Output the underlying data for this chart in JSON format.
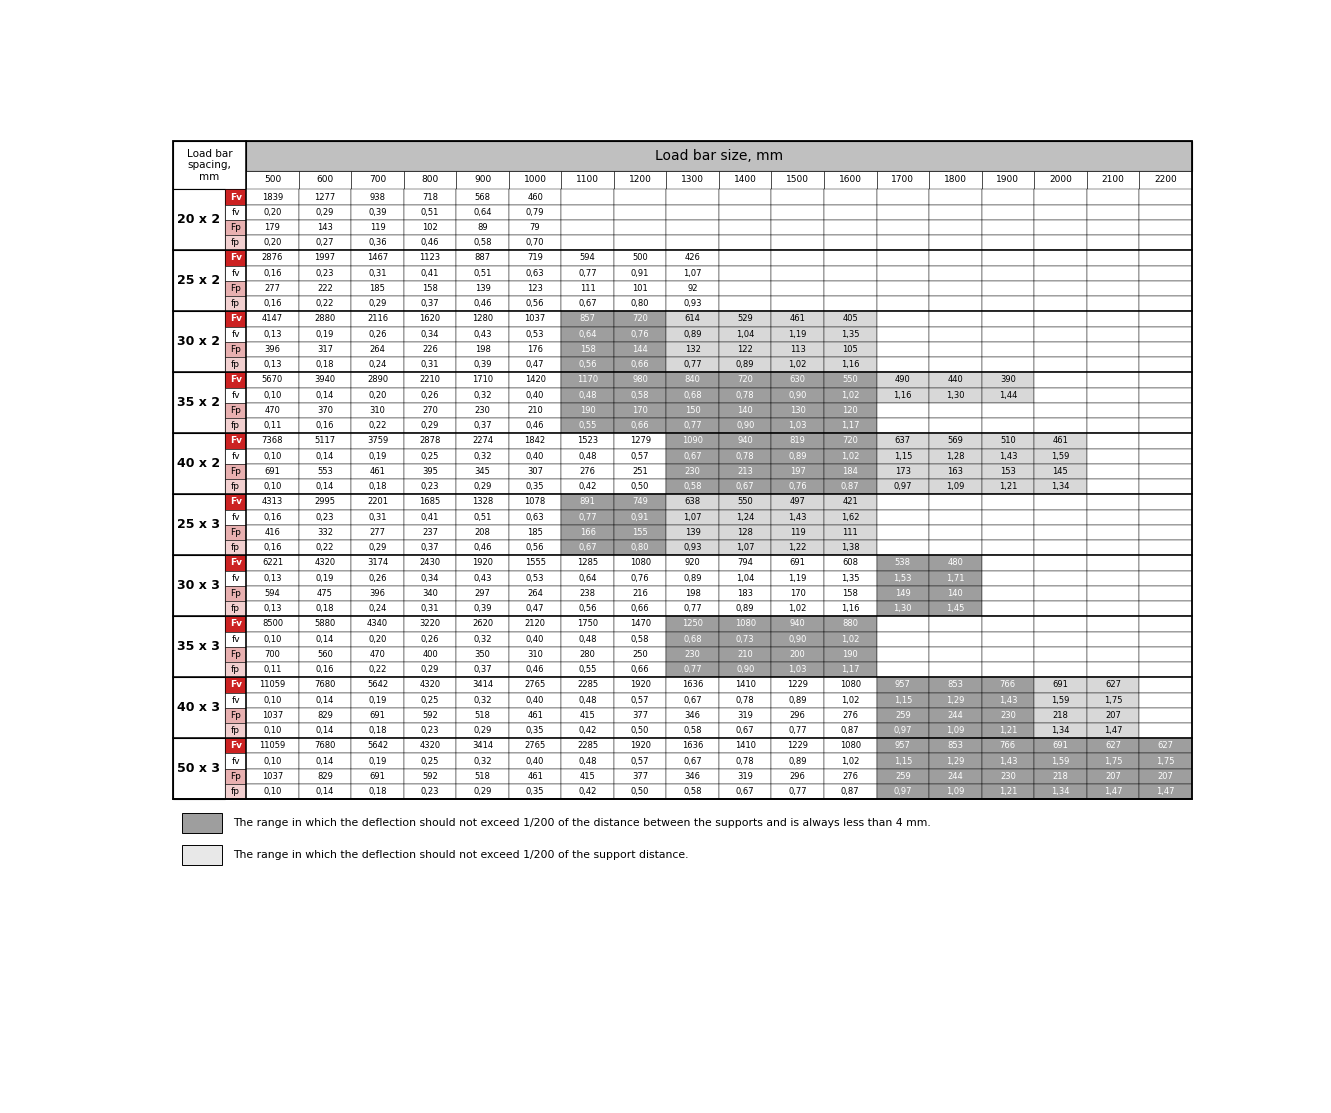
{
  "title": "Load bar size, mm",
  "col_headers": [
    "500",
    "600",
    "700",
    "800",
    "900",
    "1000",
    "1100",
    "1200",
    "1300",
    "1400",
    "1500",
    "1600",
    "1700",
    "1800",
    "1900",
    "2000",
    "2100",
    "2200"
  ],
  "row_groups": [
    {
      "label": "20 x 2",
      "rows": [
        {
          "type": "Fv",
          "values": [
            "1839",
            "1277",
            "938",
            "718",
            "568",
            "460",
            "",
            "",
            "",
            "",
            "",
            "",
            "",
            "",
            "",
            "",
            "",
            ""
          ]
        },
        {
          "type": "fv",
          "values": [
            "0,20",
            "0,29",
            "0,39",
            "0,51",
            "0,64",
            "0,79",
            "",
            "",
            "",
            "",
            "",
            "",
            "",
            "",
            "",
            "",
            "",
            ""
          ]
        },
        {
          "type": "Fp",
          "values": [
            "179",
            "143",
            "119",
            "102",
            "89",
            "79",
            "",
            "",
            "",
            "",
            "",
            "",
            "",
            "",
            "",
            "",
            "",
            ""
          ]
        },
        {
          "type": "fp",
          "values": [
            "0,20",
            "0,27",
            "0,36",
            "0,46",
            "0,58",
            "0,70",
            "",
            "",
            "",
            "",
            "",
            "",
            "",
            "",
            "",
            "",
            "",
            ""
          ]
        }
      ]
    },
    {
      "label": "25 x 2",
      "rows": [
        {
          "type": "Fv",
          "values": [
            "2876",
            "1997",
            "1467",
            "1123",
            "887",
            "719",
            "594",
            "500",
            "426",
            "",
            "",
            "",
            "",
            "",
            "",
            "",
            "",
            ""
          ]
        },
        {
          "type": "fv",
          "values": [
            "0,16",
            "0,23",
            "0,31",
            "0,41",
            "0,51",
            "0,63",
            "0,77",
            "0,91",
            "1,07",
            "",
            "",
            "",
            "",
            "",
            "",
            "",
            "",
            ""
          ]
        },
        {
          "type": "Fp",
          "values": [
            "277",
            "222",
            "185",
            "158",
            "139",
            "123",
            "111",
            "101",
            "92",
            "",
            "",
            "",
            "",
            "",
            "",
            "",
            "",
            ""
          ]
        },
        {
          "type": "fp",
          "values": [
            "0,16",
            "0,22",
            "0,29",
            "0,37",
            "0,46",
            "0,56",
            "0,67",
            "0,80",
            "0,93",
            "",
            "",
            "",
            "",
            "",
            "",
            "",
            "",
            ""
          ]
        }
      ]
    },
    {
      "label": "30 x 2",
      "rows": [
        {
          "type": "Fv",
          "values": [
            "4147",
            "2880",
            "2116",
            "1620",
            "1280",
            "1037",
            "857",
            "720",
            "614",
            "529",
            "461",
            "405",
            "",
            "",
            "",
            "",
            "",
            ""
          ]
        },
        {
          "type": "fv",
          "values": [
            "0,13",
            "0,19",
            "0,26",
            "0,34",
            "0,43",
            "0,53",
            "0,64",
            "0,76",
            "0,89",
            "1,04",
            "1,19",
            "1,35",
            "",
            "",
            "",
            "",
            "",
            ""
          ]
        },
        {
          "type": "Fp",
          "values": [
            "396",
            "317",
            "264",
            "226",
            "198",
            "176",
            "158",
            "144",
            "132",
            "122",
            "113",
            "105",
            "",
            "",
            "",
            "",
            "",
            ""
          ]
        },
        {
          "type": "fp",
          "values": [
            "0,13",
            "0,18",
            "0,24",
            "0,31",
            "0,39",
            "0,47",
            "0,56",
            "0,66",
            "0,77",
            "0,89",
            "1,02",
            "1,16",
            "",
            "",
            "",
            "",
            "",
            ""
          ]
        }
      ]
    },
    {
      "label": "35 x 2",
      "rows": [
        {
          "type": "Fv",
          "values": [
            "5670",
            "3940",
            "2890",
            "2210",
            "1710",
            "1420",
            "1170",
            "980",
            "840",
            "720",
            "630",
            "550",
            "490",
            "440",
            "390",
            "",
            "",
            ""
          ]
        },
        {
          "type": "fv",
          "values": [
            "0,10",
            "0,14",
            "0,20",
            "0,26",
            "0,32",
            "0,40",
            "0,48",
            "0,58",
            "0,68",
            "0,78",
            "0,90",
            "1,02",
            "1,16",
            "1,30",
            "1,44",
            "",
            "",
            ""
          ]
        },
        {
          "type": "Fp",
          "values": [
            "470",
            "370",
            "310",
            "270",
            "230",
            "210",
            "190",
            "170",
            "150",
            "140",
            "130",
            "120",
            "",
            "",
            "",
            "",
            "",
            ""
          ]
        },
        {
          "type": "fp",
          "values": [
            "0,11",
            "0,16",
            "0,22",
            "0,29",
            "0,37",
            "0,46",
            "0,55",
            "0,66",
            "0,77",
            "0,90",
            "1,03",
            "1,17",
            "",
            "",
            "",
            "",
            "",
            ""
          ]
        }
      ]
    },
    {
      "label": "40 x 2",
      "rows": [
        {
          "type": "Fv",
          "values": [
            "7368",
            "5117",
            "3759",
            "2878",
            "2274",
            "1842",
            "1523",
            "1279",
            "1090",
            "940",
            "819",
            "720",
            "637",
            "569",
            "510",
            "461",
            "",
            ""
          ]
        },
        {
          "type": "fv",
          "values": [
            "0,10",
            "0,14",
            "0,19",
            "0,25",
            "0,32",
            "0,40",
            "0,48",
            "0,57",
            "0,67",
            "0,78",
            "0,89",
            "1,02",
            "1,15",
            "1,28",
            "1,43",
            "1,59",
            "",
            ""
          ]
        },
        {
          "type": "Fp",
          "values": [
            "691",
            "553",
            "461",
            "395",
            "345",
            "307",
            "276",
            "251",
            "230",
            "213",
            "197",
            "184",
            "173",
            "163",
            "153",
            "145",
            "",
            ""
          ]
        },
        {
          "type": "fp",
          "values": [
            "0,10",
            "0,14",
            "0,18",
            "0,23",
            "0,29",
            "0,35",
            "0,42",
            "0,50",
            "0,58",
            "0,67",
            "0,76",
            "0,87",
            "0,97",
            "1,09",
            "1,21",
            "1,34",
            "",
            ""
          ]
        }
      ]
    },
    {
      "label": "25 x 3",
      "rows": [
        {
          "type": "Fv",
          "values": [
            "4313",
            "2995",
            "2201",
            "1685",
            "1328",
            "1078",
            "891",
            "749",
            "638",
            "550",
            "497",
            "421",
            "",
            "",
            "",
            "",
            "",
            ""
          ]
        },
        {
          "type": "fv",
          "values": [
            "0,16",
            "0,23",
            "0,31",
            "0,41",
            "0,51",
            "0,63",
            "0,77",
            "0,91",
            "1,07",
            "1,24",
            "1,43",
            "1,62",
            "",
            "",
            "",
            "",
            "",
            ""
          ]
        },
        {
          "type": "Fp",
          "values": [
            "416",
            "332",
            "277",
            "237",
            "208",
            "185",
            "166",
            "155",
            "139",
            "128",
            "119",
            "111",
            "",
            "",
            "",
            "",
            "",
            ""
          ]
        },
        {
          "type": "fp",
          "values": [
            "0,16",
            "0,22",
            "0,29",
            "0,37",
            "0,46",
            "0,56",
            "0,67",
            "0,80",
            "0,93",
            "1,07",
            "1,22",
            "1,38",
            "",
            "",
            "",
            "",
            "",
            ""
          ]
        }
      ]
    },
    {
      "label": "30 x 3",
      "rows": [
        {
          "type": "Fv",
          "values": [
            "6221",
            "4320",
            "3174",
            "2430",
            "1920",
            "1555",
            "1285",
            "1080",
            "920",
            "794",
            "691",
            "608",
            "538",
            "480",
            "",
            "",
            "",
            ""
          ]
        },
        {
          "type": "fv",
          "values": [
            "0,13",
            "0,19",
            "0,26",
            "0,34",
            "0,43",
            "0,53",
            "0,64",
            "0,76",
            "0,89",
            "1,04",
            "1,19",
            "1,35",
            "1,53",
            "1,71",
            "",
            "",
            "",
            ""
          ]
        },
        {
          "type": "Fp",
          "values": [
            "594",
            "475",
            "396",
            "340",
            "297",
            "264",
            "238",
            "216",
            "198",
            "183",
            "170",
            "158",
            "149",
            "140",
            "",
            "",
            "",
            ""
          ]
        },
        {
          "type": "fp",
          "values": [
            "0,13",
            "0,18",
            "0,24",
            "0,31",
            "0,39",
            "0,47",
            "0,56",
            "0,66",
            "0,77",
            "0,89",
            "1,02",
            "1,16",
            "1,30",
            "1,45",
            "",
            "",
            "",
            ""
          ]
        }
      ]
    },
    {
      "label": "35 x 3",
      "rows": [
        {
          "type": "Fv",
          "values": [
            "8500",
            "5880",
            "4340",
            "3220",
            "2620",
            "2120",
            "1750",
            "1470",
            "1250",
            "1080",
            "940",
            "880",
            "",
            "",
            "",
            "",
            "",
            ""
          ]
        },
        {
          "type": "fv",
          "values": [
            "0,10",
            "0,14",
            "0,20",
            "0,26",
            "0,32",
            "0,40",
            "0,48",
            "0,58",
            "0,68",
            "0,73",
            "0,90",
            "1,02",
            "",
            "",
            "",
            "",
            "",
            ""
          ]
        },
        {
          "type": "Fp",
          "values": [
            "700",
            "560",
            "470",
            "400",
            "350",
            "310",
            "280",
            "250",
            "230",
            "210",
            "200",
            "190",
            "",
            "",
            "",
            "",
            "",
            ""
          ]
        },
        {
          "type": "fp",
          "values": [
            "0,11",
            "0,16",
            "0,22",
            "0,29",
            "0,37",
            "0,46",
            "0,55",
            "0,66",
            "0,77",
            "0,90",
            "1,03",
            "1,17",
            "",
            "",
            "",
            "",
            "",
            ""
          ]
        }
      ]
    },
    {
      "label": "40 x 3",
      "rows": [
        {
          "type": "Fv",
          "values": [
            "11059",
            "7680",
            "5642",
            "4320",
            "3414",
            "2765",
            "2285",
            "1920",
            "1636",
            "1410",
            "1229",
            "1080",
            "957",
            "853",
            "766",
            "691",
            "627",
            ""
          ]
        },
        {
          "type": "fv",
          "values": [
            "0,10",
            "0,14",
            "0,19",
            "0,25",
            "0,32",
            "0,40",
            "0,48",
            "0,57",
            "0,67",
            "0,78",
            "0,89",
            "1,02",
            "1,15",
            "1,29",
            "1,43",
            "1,59",
            "1,75",
            ""
          ]
        },
        {
          "type": "Fp",
          "values": [
            "1037",
            "829",
            "691",
            "592",
            "518",
            "461",
            "415",
            "377",
            "346",
            "319",
            "296",
            "276",
            "259",
            "244",
            "230",
            "218",
            "207",
            ""
          ]
        },
        {
          "type": "fp",
          "values": [
            "0,10",
            "0,14",
            "0,18",
            "0,23",
            "0,29",
            "0,35",
            "0,42",
            "0,50",
            "0,58",
            "0,67",
            "0,77",
            "0,87",
            "0,97",
            "1,09",
            "1,21",
            "1,34",
            "1,47",
            ""
          ]
        }
      ]
    },
    {
      "label": "50 x 3",
      "rows": [
        {
          "type": "Fv",
          "values": [
            "11059",
            "7680",
            "5642",
            "4320",
            "3414",
            "2765",
            "2285",
            "1920",
            "1636",
            "1410",
            "1229",
            "1080",
            "957",
            "853",
            "766",
            "691",
            "627",
            "627"
          ]
        },
        {
          "type": "fv",
          "values": [
            "0,10",
            "0,14",
            "0,19",
            "0,25",
            "0,32",
            "0,40",
            "0,48",
            "0,57",
            "0,67",
            "0,78",
            "0,89",
            "1,02",
            "1,15",
            "1,29",
            "1,43",
            "1,59",
            "1,75",
            "1,75"
          ]
        },
        {
          "type": "Fp",
          "values": [
            "1037",
            "829",
            "691",
            "592",
            "518",
            "461",
            "415",
            "377",
            "346",
            "319",
            "296",
            "276",
            "259",
            "244",
            "230",
            "218",
            "207",
            "207"
          ]
        },
        {
          "type": "fp",
          "values": [
            "0,10",
            "0,14",
            "0,18",
            "0,23",
            "0,29",
            "0,35",
            "0,42",
            "0,50",
            "0,58",
            "0,67",
            "0,77",
            "0,87",
            "0,97",
            "1,09",
            "1,21",
            "1,34",
            "1,47",
            "1,47"
          ]
        }
      ]
    }
  ],
  "shading": {
    "0": {
      "dark": [],
      "light": []
    },
    "1": {
      "dark": [],
      "light": []
    },
    "2": {
      "dark": [
        6,
        7
      ],
      "light": [
        8,
        9,
        10,
        11
      ]
    },
    "3": {
      "dark": [
        6,
        7,
        8,
        9,
        10,
        11
      ],
      "light": [
        12,
        13,
        14
      ]
    },
    "4": {
      "dark": [
        8,
        9,
        10,
        11
      ],
      "light": [
        12,
        13,
        14,
        15
      ]
    },
    "5": {
      "dark": [
        6,
        7
      ],
      "light": [
        8,
        9,
        10,
        11
      ]
    },
    "6": {
      "dark": [
        12,
        13
      ],
      "light": []
    },
    "7": {
      "dark": [
        8,
        9,
        10,
        11
      ],
      "light": []
    },
    "8": {
      "dark": [
        12,
        13,
        14
      ],
      "light": [
        15,
        16
      ]
    },
    "9": {
      "dark": [
        12,
        13,
        14,
        15,
        16,
        17
      ],
      "light": []
    }
  },
  "legend": [
    {
      "color": "#9e9e9e",
      "text": "The range in which the deflection should not exceed 1/200 of the distance between the supports and is always less than 4 mm."
    },
    {
      "color": "#e8e8e8",
      "text": "The range in which the deflection should not exceed 1/200 of the support distance."
    }
  ]
}
